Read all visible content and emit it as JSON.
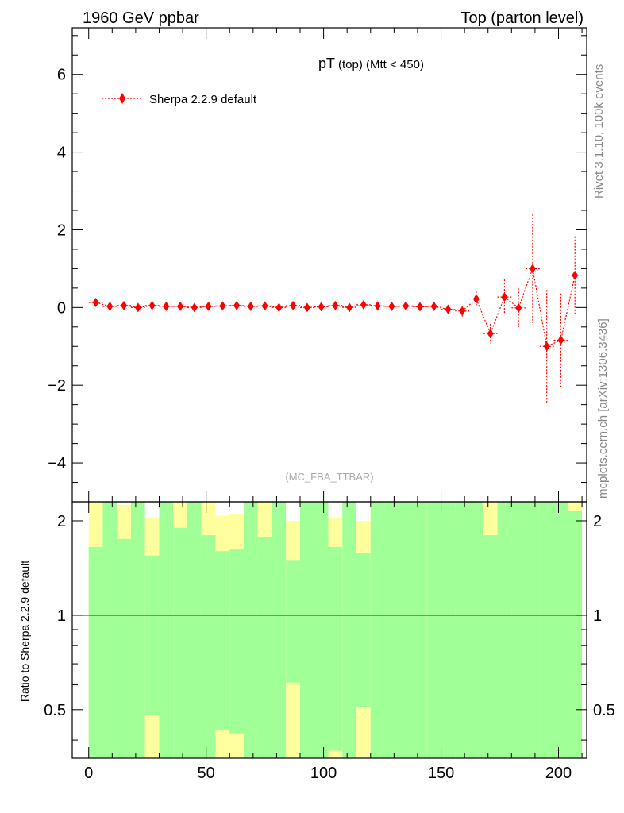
{
  "header": {
    "left_title": "1960 GeV ppbar",
    "right_title": "Top (parton level)"
  },
  "side_labels": {
    "rivet": "Rivet 3.1.10,  100k events",
    "mcplots": "mcplots.cern.ch [arXiv:1306.3436]"
  },
  "chart_data": [
    {
      "type": "scatter",
      "panel": "main",
      "title_main": "pT",
      "title_sub": "(top) (Mtt < 450)",
      "watermark": "(MC_FBA_TTBAR)",
      "xlim": [
        -7,
        212
      ],
      "ylim": [
        -5,
        7.2
      ],
      "yticks": [
        -4,
        -2,
        0,
        2,
        4,
        6
      ],
      "ytick_labels": [
        "−4",
        "−2",
        "0",
        "2",
        "4",
        "6"
      ],
      "legend": {
        "position": "top-left"
      },
      "colors": {
        "series": "#ff0000"
      },
      "series": [
        {
          "name": "Sherpa 2.2.9 default",
          "x": [
            3,
            9,
            15,
            21,
            27,
            33,
            39,
            45,
            51,
            57,
            63,
            69,
            75,
            81,
            87,
            93,
            99,
            105,
            111,
            117,
            123,
            129,
            135,
            141,
            147,
            153,
            159,
            165,
            171,
            177,
            183,
            189,
            195,
            201,
            207
          ],
          "y": [
            0.13,
            0.03,
            0.05,
            0.0,
            0.05,
            0.03,
            0.03,
            0.0,
            0.03,
            0.04,
            0.05,
            0.03,
            0.04,
            0.0,
            0.05,
            0.0,
            0.02,
            0.05,
            0.0,
            0.07,
            0.04,
            0.03,
            0.04,
            0.02,
            0.03,
            -0.05,
            -0.09,
            0.22,
            -0.67,
            0.27,
            -0.01,
            1.0,
            -1.0,
            -0.84,
            0.83
          ],
          "yerr": [
            0.04,
            0.04,
            0.04,
            0.04,
            0.04,
            0.04,
            0.04,
            0.04,
            0.04,
            0.04,
            0.04,
            0.04,
            0.04,
            0.04,
            0.04,
            0.04,
            0.04,
            0.04,
            0.04,
            0.04,
            0.04,
            0.04,
            0.04,
            0.04,
            0.05,
            0.12,
            0.14,
            0.2,
            0.25,
            0.45,
            0.5,
            1.4,
            1.45,
            1.2,
            1.0
          ]
        }
      ]
    },
    {
      "type": "area",
      "panel": "ratio",
      "ylabel": "Ratio to Sherpa 2.2.9 default",
      "xlim": [
        -7,
        212
      ],
      "ylim": [
        0.35,
        2.3
      ],
      "log_y": true,
      "xticks": [
        0,
        50,
        100,
        150,
        200
      ],
      "yticks": [
        0.5,
        1,
        2
      ],
      "ytick_labels": [
        "0.5",
        "1",
        "2"
      ],
      "reference_line": 1,
      "colors": {
        "green_band": "#a0ff97",
        "yellow_band": "#ffff9e",
        "reference": "#000000"
      },
      "bins": {
        "x_low": [
          0,
          6,
          12,
          18,
          24,
          30,
          36,
          42,
          48,
          54,
          60,
          66,
          72,
          78,
          84,
          90,
          96,
          102,
          108,
          114,
          120,
          126,
          132,
          138,
          144,
          150,
          156,
          162,
          168,
          174,
          180,
          186,
          192,
          198,
          204
        ],
        "x_high": [
          6,
          12,
          18,
          24,
          30,
          36,
          42,
          48,
          54,
          60,
          66,
          72,
          78,
          84,
          90,
          96,
          102,
          108,
          114,
          120,
          126,
          132,
          138,
          144,
          150,
          156,
          162,
          168,
          174,
          180,
          186,
          192,
          198,
          204,
          210
        ],
        "green_lower": [
          0.35,
          0.35,
          0.35,
          0.35,
          0.48,
          0.35,
          0.35,
          0.35,
          0.35,
          0.43,
          0.42,
          0.35,
          0.35,
          0.35,
          0.61,
          0.35,
          0.35,
          0.37,
          0.35,
          0.51,
          0.35,
          0.35,
          0.35,
          0.35,
          0.35,
          0.35,
          0.35,
          0.35,
          0.35,
          0.35,
          0.35,
          0.35,
          0.35,
          0.35,
          0.35
        ],
        "green_upper": [
          1.65,
          2.3,
          1.75,
          2.3,
          1.55,
          2.3,
          1.9,
          2.3,
          1.8,
          1.6,
          1.62,
          2.3,
          1.78,
          2.3,
          1.5,
          2.3,
          2.3,
          1.65,
          2.3,
          1.58,
          2.3,
          2.3,
          2.3,
          2.3,
          2.3,
          2.3,
          2.3,
          2.3,
          1.8,
          2.3,
          2.3,
          2.3,
          2.3,
          2.3,
          2.15
        ],
        "yellow_lower": [
          0.35,
          0.35,
          0.35,
          0.35,
          0.35,
          0.35,
          0.35,
          0.35,
          0.35,
          0.35,
          0.35,
          0.35,
          0.35,
          0.35,
          0.35,
          0.35,
          0.35,
          0.35,
          0.35,
          0.35,
          0.35,
          0.35,
          0.35,
          0.35,
          0.35,
          0.35,
          0.35,
          0.35,
          0.35,
          0.35,
          0.35,
          0.35,
          0.35,
          0.35,
          0.35
        ],
        "yellow_upper": [
          2.3,
          2.3,
          2.25,
          2.3,
          2.05,
          2.3,
          2.3,
          2.3,
          2.3,
          2.08,
          2.1,
          2.3,
          2.3,
          2.3,
          2.0,
          2.3,
          2.3,
          2.05,
          2.3,
          2.0,
          2.3,
          2.3,
          2.3,
          2.3,
          2.3,
          2.3,
          2.3,
          2.3,
          2.3,
          2.3,
          2.3,
          2.3,
          2.3,
          2.3,
          2.3
        ],
        "blank_upper": [
          2.3,
          2.3,
          2.3,
          2.3,
          2.3,
          2.3,
          2.3,
          2.3,
          2.3,
          2.3,
          2.3,
          2.3,
          2.3,
          2.3,
          2.3,
          2.3,
          2.3,
          2.3,
          2.3,
          2.3,
          2.3,
          2.3,
          2.3,
          2.3,
          2.3,
          2.3,
          2.3,
          2.3,
          2.3,
          2.3,
          2.3,
          2.3,
          2.3,
          2.3,
          2.3
        ],
        "white_gap_lower": [
          null,
          null,
          null,
          null,
          2.05,
          null,
          null,
          null,
          null,
          2.08,
          2.1,
          null,
          null,
          null,
          2.0,
          null,
          null,
          2.05,
          null,
          2.0,
          null,
          null,
          null,
          null,
          null,
          null,
          null,
          null,
          null,
          null,
          null,
          null,
          null,
          null,
          null
        ]
      }
    }
  ]
}
